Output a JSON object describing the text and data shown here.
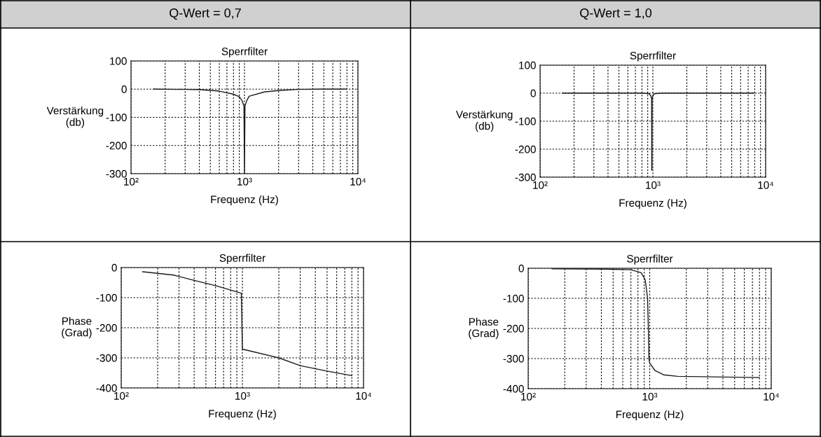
{
  "chart_data": [
    {
      "type": "line",
      "title": "Sperrfilter",
      "annotations": [
        "Q-Wert = 0,7"
      ],
      "xlabel": "Frequenz (Hz)",
      "ylabel": "Verstärkung\n(db)",
      "log": "x",
      "grid": true,
      "line_style": "solid",
      "xlim": [
        100,
        10000
      ],
      "ylim": [
        -300,
        100
      ],
      "yticks": [
        -300,
        -200,
        -100,
        0,
        100
      ],
      "xticks": [
        {
          "value": 100,
          "label": "10²"
        },
        {
          "value": 200,
          "label": null
        },
        {
          "value": 300,
          "label": null
        },
        {
          "value": 400,
          "label": null
        },
        {
          "value": 500,
          "label": null
        },
        {
          "value": 600,
          "label": null
        },
        {
          "value": 700,
          "label": null
        },
        {
          "value": 800,
          "label": null
        },
        {
          "value": 900,
          "label": null
        },
        {
          "value": 1000,
          "label": "10³"
        },
        {
          "value": 2000,
          "label": null
        },
        {
          "value": 3000,
          "label": null
        },
        {
          "value": 4000,
          "label": null
        },
        {
          "value": 5000,
          "label": null
        },
        {
          "value": 6000,
          "label": null
        },
        {
          "value": 7000,
          "label": null
        },
        {
          "value": 8000,
          "label": null
        },
        {
          "value": 9000,
          "label": null
        },
        {
          "value": 10000,
          "label": "10⁴"
        }
      ],
      "series": [
        {
          "color": "#1a1a1a",
          "x": [
            157,
            300,
            400,
            600,
            800,
            900,
            950,
            990,
            1000,
            1010,
            1050,
            1100,
            1500,
            2000,
            3000,
            5000,
            7950
          ],
          "values": [
            0,
            -1,
            -2,
            -7,
            -18,
            -27,
            -40,
            -60,
            -300,
            -60,
            -40,
            -25,
            -10,
            -5,
            -1,
            0,
            0
          ]
        }
      ]
    },
    {
      "type": "line",
      "title": "Sperrfilter",
      "annotations": [
        "Q-Wert = 1,0"
      ],
      "xlabel": "Frequenz (Hz)",
      "ylabel": "Verstärkung\n(db)",
      "log": "x",
      "grid": true,
      "line_style": "solid",
      "xlim": [
        100,
        10000
      ],
      "ylim": [
        -300,
        100
      ],
      "yticks": [
        -300,
        -200,
        -100,
        0,
        100
      ],
      "xticks": [
        {
          "value": 100,
          "label": "10²"
        },
        {
          "value": 200,
          "label": null
        },
        {
          "value": 300,
          "label": null
        },
        {
          "value": 400,
          "label": null
        },
        {
          "value": 500,
          "label": null
        },
        {
          "value": 600,
          "label": null
        },
        {
          "value": 700,
          "label": null
        },
        {
          "value": 800,
          "label": null
        },
        {
          "value": 900,
          "label": null
        },
        {
          "value": 1000,
          "label": "10³"
        },
        {
          "value": 2000,
          "label": null
        },
        {
          "value": 3000,
          "label": null
        },
        {
          "value": 4000,
          "label": null
        },
        {
          "value": 5000,
          "label": null
        },
        {
          "value": 6000,
          "label": null
        },
        {
          "value": 7000,
          "label": null
        },
        {
          "value": 8000,
          "label": null
        },
        {
          "value": 9000,
          "label": null
        },
        {
          "value": 10000,
          "label": "10⁴"
        }
      ],
      "series": [
        {
          "color": "#1a1a1a",
          "x": [
            157,
            800,
            930,
            960,
            975,
            978,
            982,
            985,
            1000,
            1030,
            1200,
            7870
          ],
          "values": [
            0,
            0,
            -2,
            -10,
            -20,
            -275,
            -275,
            -20,
            -10,
            -2,
            0,
            0
          ]
        }
      ]
    },
    {
      "type": "line",
      "title": "Sperrfilter",
      "xlabel": "Frequenz (Hz)",
      "ylabel": "Phase\n(Grad)",
      "log": "x",
      "grid": true,
      "line_style": "solid",
      "xlim": [
        100,
        10000
      ],
      "ylim": [
        -400,
        0
      ],
      "yticks": [
        -400,
        -300,
        -200,
        -100,
        0
      ],
      "xticks": [
        {
          "value": 100,
          "label": "10²"
        },
        {
          "value": 200,
          "label": null
        },
        {
          "value": 300,
          "label": null
        },
        {
          "value": 400,
          "label": null
        },
        {
          "value": 500,
          "label": null
        },
        {
          "value": 600,
          "label": null
        },
        {
          "value": 700,
          "label": null
        },
        {
          "value": 800,
          "label": null
        },
        {
          "value": 900,
          "label": null
        },
        {
          "value": 1000,
          "label": "10³"
        },
        {
          "value": 2000,
          "label": null
        },
        {
          "value": 3000,
          "label": null
        },
        {
          "value": 4000,
          "label": null
        },
        {
          "value": 5000,
          "label": null
        },
        {
          "value": 6000,
          "label": null
        },
        {
          "value": 7000,
          "label": null
        },
        {
          "value": 8000,
          "label": null
        },
        {
          "value": 9000,
          "label": null
        },
        {
          "value": 10000,
          "label": "10⁴"
        }
      ],
      "series": [
        {
          "color": "#1a1a1a",
          "x": [
            150,
            270,
            395,
            600,
            980,
            1000,
            2000,
            3000,
            5000,
            8000
          ],
          "values": [
            -14,
            -25,
            -42,
            -60,
            -85,
            -271,
            -300,
            -326,
            -344,
            -359
          ]
        }
      ]
    },
    {
      "type": "line",
      "title": "Sperrfilter",
      "xlabel": "Frequenz (Hz)",
      "ylabel": "Phase\n(Grad)",
      "log": "x",
      "grid": true,
      "line_style": "solid",
      "xlim": [
        100,
        10000
      ],
      "ylim": [
        -400,
        0
      ],
      "yticks": [
        -400,
        -300,
        -200,
        -100,
        0
      ],
      "xticks": [
        {
          "value": 100,
          "label": "10²"
        },
        {
          "value": 200,
          "label": null
        },
        {
          "value": 300,
          "label": null
        },
        {
          "value": 400,
          "label": null
        },
        {
          "value": 500,
          "label": null
        },
        {
          "value": 600,
          "label": null
        },
        {
          "value": 700,
          "label": null
        },
        {
          "value": 800,
          "label": null
        },
        {
          "value": 900,
          "label": null
        },
        {
          "value": 1000,
          "label": "10³"
        },
        {
          "value": 2000,
          "label": null
        },
        {
          "value": 3000,
          "label": null
        },
        {
          "value": 4000,
          "label": null
        },
        {
          "value": 5000,
          "label": null
        },
        {
          "value": 6000,
          "label": null
        },
        {
          "value": 7000,
          "label": null
        },
        {
          "value": 8000,
          "label": null
        },
        {
          "value": 9000,
          "label": null
        },
        {
          "value": 10000,
          "label": "10⁴"
        }
      ],
      "series": [
        {
          "color": "#1a1a1a",
          "x": [
            157,
            400,
            700,
            850,
            919,
            960,
            975,
            985,
            1000,
            1100,
            1300,
            1700,
            8000
          ],
          "values": [
            -2,
            -3,
            -5,
            -15,
            -39,
            -100,
            -200,
            -300,
            -315,
            -339,
            -354,
            -359,
            -363
          ]
        }
      ]
    }
  ]
}
